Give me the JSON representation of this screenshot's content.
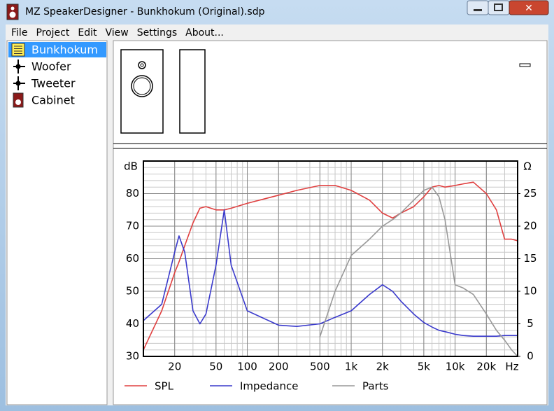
{
  "window": {
    "title": "MZ SpeakerDesigner - Bunkhokum (Original).sdp"
  },
  "menu": [
    "File",
    "Project",
    "Edit",
    "View",
    "Settings",
    "About..."
  ],
  "tree": [
    "Bunkhokum",
    "Woofer",
    "Tweeter",
    "Cabinet"
  ],
  "chart_data": {
    "type": "line",
    "x_scale": "log",
    "grid": true,
    "minor_grid": true,
    "xlabel": "Hz",
    "ylabel": "dB",
    "y2label": "Ω",
    "xlim": [
      10,
      40000
    ],
    "xticks": [
      20,
      50,
      100,
      200,
      500,
      {
        "value": 1000,
        "label": "1k"
      },
      {
        "value": 2000,
        "label": "2k"
      },
      {
        "value": 5000,
        "label": "5k"
      },
      {
        "value": 10000,
        "label": "10k"
      },
      {
        "value": 20000,
        "label": "20k"
      }
    ],
    "ylim": [
      30,
      90
    ],
    "yticks": [
      30,
      40,
      50,
      60,
      70,
      80
    ],
    "y2lim": [
      0,
      30
    ],
    "y2ticks": [
      0,
      5,
      10,
      15,
      20,
      25
    ],
    "x": [
      10,
      15,
      20,
      22,
      25,
      30,
      35,
      40,
      50,
      60,
      70,
      100,
      200,
      300,
      500,
      700,
      1000,
      1500,
      2000,
      2500,
      3000,
      4000,
      5000,
      6000,
      7000,
      8000,
      10000,
      12000,
      15000,
      20000,
      25000,
      30000,
      35000,
      40000
    ],
    "series": [
      {
        "name": "SPL",
        "color": "#e04040",
        "values": [
          32,
          44,
          55.7,
          59,
          64,
          71,
          75.5,
          76,
          75,
          75,
          75.5,
          77,
          79.5,
          81,
          82.5,
          82.5,
          81,
          78,
          74,
          72.5,
          74,
          76,
          79,
          82,
          82.5,
          82,
          82.5,
          83,
          83.5,
          80,
          75,
          66,
          66,
          65.5
        ]
      },
      {
        "name": "Impedance",
        "color": "#3a3acc",
        "axis": "y2",
        "values": [
          5.5,
          8,
          16,
          18.5,
          16,
          7,
          5,
          6.5,
          14,
          22.5,
          14,
          7,
          4.8,
          4.6,
          5,
          6,
          7,
          9.5,
          11,
          10,
          8.5,
          6.5,
          5.2,
          4.5,
          4,
          3.8,
          3.4,
          3.2,
          3.1,
          3.1,
          3.1,
          3.2,
          3.2,
          3.2
        ]
      },
      {
        "name": "Parts",
        "color": "#999999",
        "axis": "y2",
        "values": [
          null,
          null,
          null,
          null,
          null,
          null,
          null,
          null,
          null,
          null,
          null,
          null,
          null,
          null,
          3,
          10,
          15.5,
          18,
          20,
          21,
          22,
          24,
          25.5,
          26,
          24.5,
          21,
          11,
          10.5,
          9.5,
          6.5,
          4,
          2.5,
          1,
          0
        ]
      }
    ]
  }
}
